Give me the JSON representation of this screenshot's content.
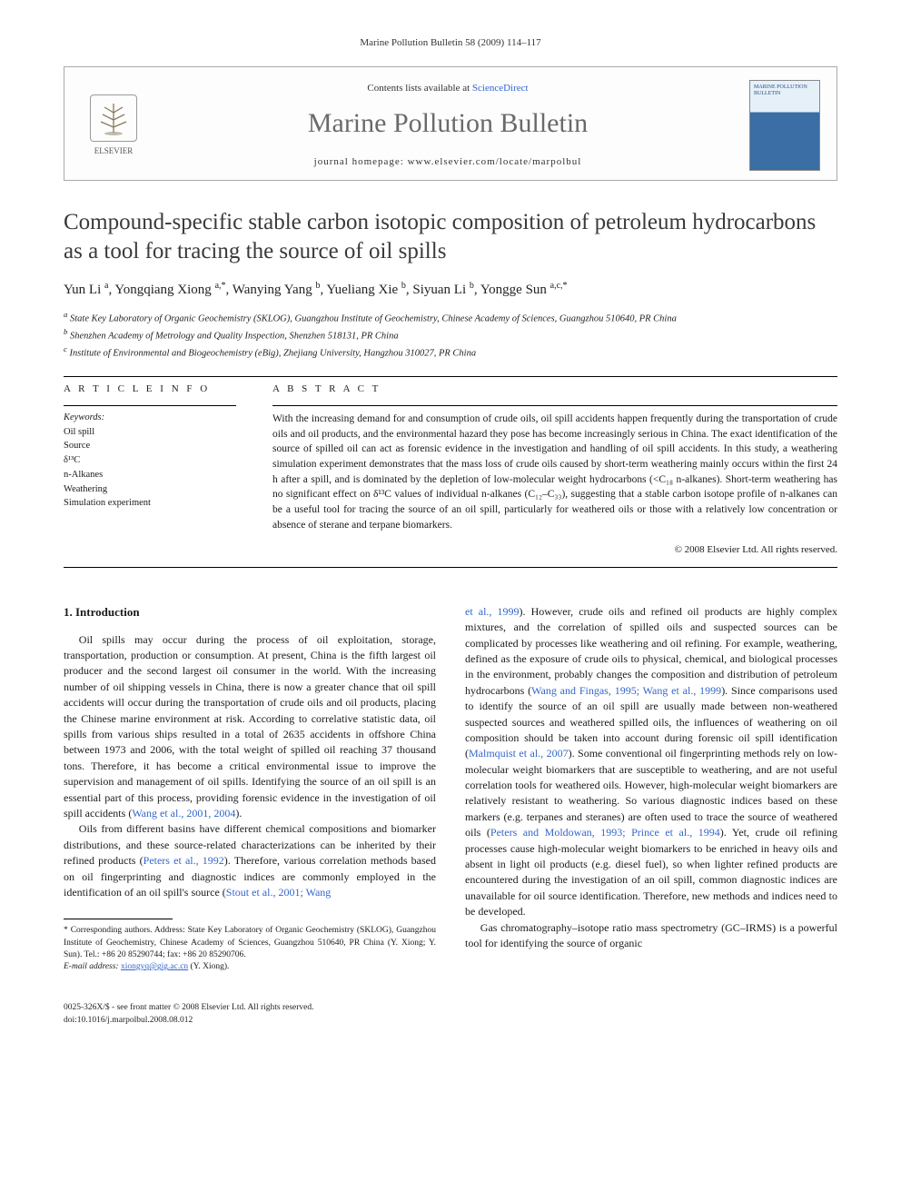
{
  "running_head": "Marine Pollution Bulletin 58 (2009) 114–117",
  "header": {
    "publisher_name": "ELSEVIER",
    "contents_prefix": "Contents lists available at ",
    "contents_link": "ScienceDirect",
    "journal_name": "Marine Pollution Bulletin",
    "homepage_prefix": "journal homepage: ",
    "homepage_url": "www.elsevier.com/locate/marpolbul",
    "cover_title": "MARINE POLLUTION BULLETIN"
  },
  "article": {
    "title": "Compound-specific stable carbon isotopic composition of petroleum hydrocarbons as a tool for tracing the source of oil spills",
    "authors_html": "Yun Li <sup>a</sup>, Yongqiang Xiong <sup>a,*</sup>, Wanying Yang <sup>b</sup>, Yueliang Xie <sup>b</sup>, Siyuan Li <sup>b</sup>, Yongge Sun <sup>a,c,*</sup>",
    "affiliations": [
      "a State Key Laboratory of Organic Geochemistry (SKLOG), Guangzhou Institute of Geochemistry, Chinese Academy of Sciences, Guangzhou 510640, PR China",
      "b Shenzhen Academy of Metrology and Quality Inspection, Shenzhen 518131, PR China",
      "c Institute of Environmental and Biogeochemistry (eBig), Zhejiang University, Hangzhou 310027, PR China"
    ]
  },
  "info": {
    "heading": "A R T I C L E   I N F O",
    "keywords_label": "Keywords:",
    "keywords": [
      "Oil spill",
      "Source",
      "δ¹³C",
      "n-Alkanes",
      "Weathering",
      "Simulation experiment"
    ]
  },
  "abstract": {
    "heading": "A B S T R A C T",
    "text": "With the increasing demand for and consumption of crude oils, oil spill accidents happen frequently during the transportation of crude oils and oil products, and the environmental hazard they pose has become increasingly serious in China. The exact identification of the source of spilled oil can act as forensic evidence in the investigation and handling of oil spill accidents. In this study, a weathering simulation experiment demonstrates that the mass loss of crude oils caused by short-term weathering mainly occurs within the first 24 h after a spill, and is dominated by the depletion of low-molecular weight hydrocarbons (<C₁₈ n-alkanes). Short-term weathering has no significant effect on δ¹³C values of individual n-alkanes (C₁₂–C₃₃), suggesting that a stable carbon isotope profile of n-alkanes can be a useful tool for tracing the source of an oil spill, particularly for weathered oils or those with a relatively low concentration or absence of sterane and terpane biomarkers.",
    "copyright": "© 2008 Elsevier Ltd. All rights reserved."
  },
  "body": {
    "intro_heading": "1. Introduction",
    "left_paras": [
      "Oil spills may occur during the process of oil exploitation, storage, transportation, production or consumption. At present, China is the fifth largest oil producer and the second largest oil consumer in the world. With the increasing number of oil shipping vessels in China, there is now a greater chance that oil spill accidents will occur during the transportation of crude oils and oil products, placing the Chinese marine environment at risk. According to correlative statistic data, oil spills from various ships resulted in a total of 2635 accidents in offshore China between 1973 and 2006, with the total weight of spilled oil reaching 37 thousand tons. Therefore, it has become a critical environmental issue to improve the supervision and management of oil spills. Identifying the source of an oil spill is an essential part of this process, providing forensic evidence in the investigation of oil spill accidents (<span class=\"cite\">Wang et al., 2001, 2004</span>).",
      "Oils from different basins have different chemical compositions and biomarker distributions, and these source-related characterizations can be inherited by their refined products (<span class=\"cite\">Peters et al., 1992</span>). Therefore, various correlation methods based on oil fingerprinting and diagnostic indices are commonly employed in the identification of an oil spill's source (<span class=\"cite\">Stout et al., 2001; Wang</span>"
    ],
    "right_paras": [
      "<span class=\"cite\">et al., 1999</span>). However, crude oils and refined oil products are highly complex mixtures, and the correlation of spilled oils and suspected sources can be complicated by processes like weathering and oil refining. For example, weathering, defined as the exposure of crude oils to physical, chemical, and biological processes in the environment, probably changes the composition and distribution of petroleum hydrocarbons (<span class=\"cite\">Wang and Fingas, 1995; Wang et al., 1999</span>). Since comparisons used to identify the source of an oil spill are usually made between non-weathered suspected sources and weathered spilled oils, the influences of weathering on oil composition should be taken into account during forensic oil spill identification (<span class=\"cite\">Malmquist et al., 2007</span>). Some conventional oil fingerprinting methods rely on low-molecular weight biomarkers that are susceptible to weathering, and are not useful correlation tools for weathered oils. However, high-molecular weight biomarkers are relatively resistant to weathering. So various diagnostic indices based on these markers (e.g. terpanes and steranes) are often used to trace the source of weathered oils (<span class=\"cite\">Peters and Moldowan, 1993; Prince et al., 1994</span>). Yet, crude oil refining processes cause high-molecular weight biomarkers to be enriched in heavy oils and absent in light oil products (e.g. diesel fuel), so when lighter refined products are encountered during the investigation of an oil spill, common diagnostic indices are unavailable for oil source identification. Therefore, new methods and indices need to be developed.",
      "Gas chromatography–isotope ratio mass spectrometry (GC–IRMS) is a powerful tool for identifying the source of organic"
    ]
  },
  "footnote": {
    "corresponding": "* Corresponding authors. Address: State Key Laboratory of Organic Geochemistry (SKLOG), Guangzhou Institute of Geochemistry, Chinese Academy of Sciences, Guangzhou 510640, PR China (Y. Xiong; Y. Sun). Tel.: +86 20 85290744; fax: +86 20 85290706.",
    "email_label": "E-mail address:",
    "email": "xiongyq@gig.ac.cn",
    "email_who": "(Y. Xiong)."
  },
  "footer": {
    "left1": "0025-326X/$ - see front matter © 2008 Elsevier Ltd. All rights reserved.",
    "left2": "doi:10.1016/j.marpolbul.2008.08.012"
  },
  "colors": {
    "link": "#3366cc",
    "text": "#1a1a1a",
    "heading_gray": "#6a6a6a",
    "border": "#aaaaaa"
  }
}
